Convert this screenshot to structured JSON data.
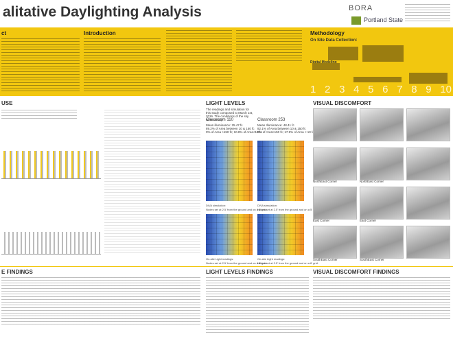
{
  "header": {
    "title": "alitative Daylighting Analysis",
    "logo_bora": "BORA",
    "logo_psu": "Portland State"
  },
  "intro": {
    "abstract": "ct",
    "introduction": "Introduction",
    "methodology": "Methodology",
    "on_site": "On Site Data Collection:",
    "digital": "Digital Modeling",
    "steps": [
      "1",
      "2",
      "3",
      "4",
      "5",
      "6",
      "7",
      "8",
      "9",
      "10"
    ]
  },
  "use": {
    "title": "USE",
    "findings": "E FINDINGS"
  },
  "light_levels": {
    "title": "LIGHT LEVELS",
    "intro": "The readings and simulation for this study composed to March 1st, 2016. The conditions of the sky were cloudy.",
    "room_a": "Classroom 110",
    "room_a_stats": [
      "Mean illuminance: 25.47 fc",
      "89.2% of Area between 10 & 150 fc",
      "0% of Area >150 fc; 10.8% of Area<10 fc"
    ],
    "room_b": "Classroom 253",
    "room_b_stats": [
      "Mean Illuminance: 48.41 fc",
      "82.1% of Area between 10 & 150 fc",
      "0% of Area>150 fc; 17.9% of Area < 10 fc"
    ],
    "diva": "DIVA simulation:",
    "diva_note": "Nodes set at 2.5' from the ground and on a 5' grid.",
    "onsite": "On-site Light readings:",
    "onsite_note": "Nodes set at 2.5' from the ground and on a 6' grid.",
    "findings": "LIGHT LEVELS FINDINGS"
  },
  "visual": {
    "title": "VISUAL DISCOMFORT",
    "labels": [
      "NorthEast Corner",
      "East Corner",
      "SouthEast Corner"
    ],
    "findings": "VISUAL DISCOMFORT FINDINGS"
  }
}
